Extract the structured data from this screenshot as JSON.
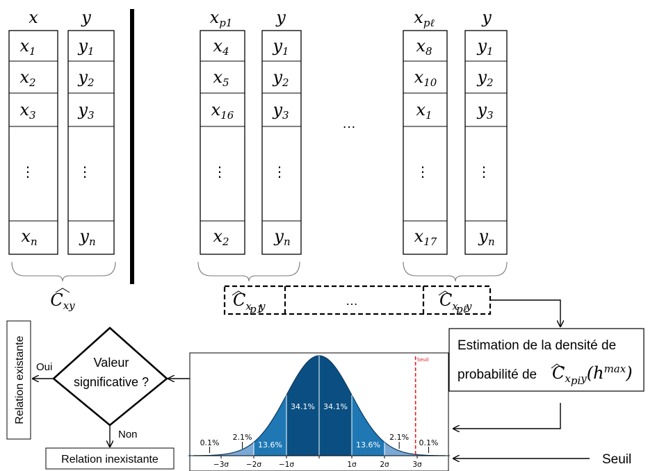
{
  "groups": [
    {
      "header": [
        "x",
        "y"
      ],
      "x_cells": [
        [
          "x",
          "1"
        ],
        [
          "x",
          "2"
        ],
        [
          "x",
          "3"
        ],
        "⋮",
        [
          "x",
          "n"
        ]
      ],
      "y_cells": [
        [
          "y",
          "1"
        ],
        [
          "y",
          "2"
        ],
        [
          "y",
          "3"
        ],
        "⋮",
        [
          "y",
          "n"
        ]
      ],
      "brace_label": "C_xy"
    },
    {
      "header": [
        "x_p1",
        "y"
      ],
      "x_cells": [
        [
          "x",
          "4"
        ],
        [
          "x",
          "5"
        ],
        [
          "x",
          "16"
        ],
        "⋮",
        [
          "x",
          "2"
        ]
      ],
      "y_cells": [
        [
          "y",
          "1"
        ],
        [
          "y",
          "2"
        ],
        [
          "y",
          "3"
        ],
        "⋮",
        [
          "y",
          "n"
        ]
      ],
      "brace_label": "C_xp1y"
    },
    {
      "header": [
        "x_pℓ",
        "y"
      ],
      "x_cells": [
        [
          "x",
          "8"
        ],
        [
          "x",
          "10"
        ],
        [
          "x",
          "1"
        ],
        "⋮",
        [
          "x",
          "17"
        ]
      ],
      "y_cells": [
        [
          "y",
          "1"
        ],
        [
          "y",
          "2"
        ],
        [
          "y",
          "3"
        ],
        "⋮",
        [
          "y",
          "n"
        ]
      ],
      "brace_label": "C_xpℓy"
    }
  ],
  "labels": {
    "hat_c": "C",
    "xy_sub": "xy",
    "xp1y_sub": "x",
    "xp1y_subsub": "p1",
    "xply_subsub": "pℓ",
    "y_sub": "y",
    "ellipsis": "…",
    "dashed_ellipsis": "…"
  },
  "estimation": {
    "line1": "Estimation de la densité de",
    "line2_prefix": "probabilité de",
    "formula_c": "C",
    "formula_sub": "x",
    "formula_subsub": "pi",
    "formula_sub_y": "y",
    "formula_arg": "(h",
    "formula_sup": "max",
    "formula_close": ")"
  },
  "decision": {
    "line1": "Valeur",
    "line2": "significative ?",
    "yes": "Oui",
    "no": "Non",
    "existing": "Relation existante",
    "nonexisting": "Relation inexistante"
  },
  "seuil_label": "Seuil",
  "chart_data": {
    "type": "area",
    "title": "",
    "x_ticks": [
      "−3σ",
      "−2σ",
      "−1σ",
      "",
      "1σ",
      "2σ",
      "3σ"
    ],
    "band_labels": [
      "0.1%",
      "2.1%",
      "13.6%",
      "34.1%",
      "34.1%",
      "13.6%",
      "2.1%",
      "0.1%"
    ],
    "threshold_label": "Seuil",
    "colors": {
      "dark": "#0b4f82",
      "medium": "#1f78b4",
      "light": "#7aa9d6",
      "threshold": "#e41a1c"
    }
  }
}
